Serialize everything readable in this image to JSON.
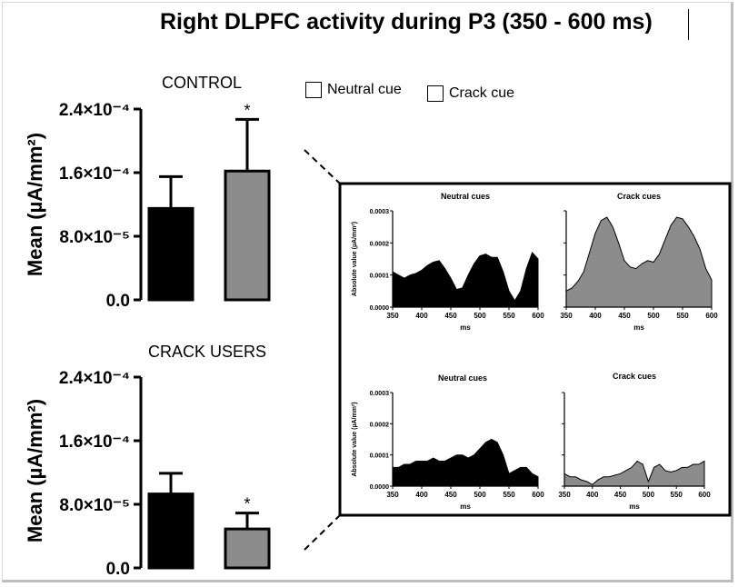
{
  "title": "Right DLPFC activity during P3 (350 - 600 ms)",
  "legend": [
    {
      "label": "Neutral cue",
      "color": "#000000"
    },
    {
      "label": "Crack cue",
      "color": "#8c8c8c"
    }
  ],
  "colors": {
    "neutral": "#000000",
    "crack": "#8c8c8c"
  },
  "chart_data": [
    {
      "type": "bar",
      "title": "CONTROL",
      "ylabel": "Mean  (µA/mm²)",
      "ylim": [
        0,
        0.00024
      ],
      "ytick_labels": [
        "0.0",
        "8.0×10⁻⁵",
        "1.6×10⁻⁴",
        "2.4×10⁻⁴"
      ],
      "series": [
        {
          "name": "Neutral cue",
          "value": 0.000115,
          "error": 4e-05
        },
        {
          "name": "Crack cue",
          "value": 0.000162,
          "error": 6.5e-05,
          "annotation": "*"
        }
      ]
    },
    {
      "type": "bar",
      "title": "CRACK USERS",
      "ylabel": "Mean  (µA/mm²)",
      "ylim": [
        0,
        0.00024
      ],
      "ytick_labels": [
        "0.0",
        "8.0×10⁻⁵",
        "1.6×10⁻⁴",
        "2.4×10⁻⁴"
      ],
      "series": [
        {
          "name": "Neutral cue",
          "value": 9.3e-05,
          "error": 2.6e-05
        },
        {
          "name": "Crack cue",
          "value": 4.9e-05,
          "error": 2e-05,
          "annotation": "*"
        }
      ]
    },
    {
      "type": "area",
      "title": "Neutral cues",
      "xlabel": "ms",
      "ylabel": "Absolute value (µA/mm²)",
      "xlim": [
        350,
        600
      ],
      "ylim": [
        0,
        0.0003
      ],
      "xticks": [
        350,
        400,
        450,
        500,
        550,
        600
      ],
      "ytick_labels": [
        "0.0000",
        "0.0001",
        "0.0002",
        "0.0003"
      ],
      "x": [
        350,
        360,
        370,
        380,
        390,
        400,
        410,
        420,
        430,
        440,
        450,
        460,
        470,
        480,
        490,
        500,
        510,
        520,
        530,
        540,
        550,
        560,
        570,
        580,
        590,
        600
      ],
      "y": [
        0.00011,
        0.0001,
        9e-05,
        0.0001,
        0.000105,
        0.000115,
        0.00013,
        0.00014,
        0.000145,
        0.00012,
        9e-05,
        5.5e-05,
        6e-05,
        0.0001,
        0.000135,
        0.00016,
        0.000165,
        0.000155,
        0.000155,
        0.00011,
        5e-05,
        2e-05,
        5e-05,
        0.00012,
        0.00017,
        0.00015
      ]
    },
    {
      "type": "area",
      "title": "Crack cues",
      "xlabel": "ms",
      "ylabel": "",
      "xlim": [
        350,
        600
      ],
      "ylim": [
        0,
        0.0003
      ],
      "xticks": [
        350,
        400,
        450,
        500,
        550,
        600
      ],
      "x": [
        350,
        360,
        370,
        380,
        390,
        400,
        410,
        420,
        430,
        440,
        450,
        460,
        470,
        480,
        490,
        500,
        510,
        520,
        530,
        540,
        550,
        560,
        570,
        580,
        590,
        600
      ],
      "y": [
        5e-05,
        6e-05,
        8e-05,
        0.00011,
        0.00017,
        0.00023,
        0.00027,
        0.00028,
        0.00025,
        0.0002,
        0.000145,
        0.000125,
        0.00012,
        0.000135,
        0.000145,
        0.00014,
        0.000165,
        0.00021,
        0.000255,
        0.00028,
        0.000275,
        0.00025,
        0.00022,
        0.00018,
        0.00012,
        8.5e-05
      ]
    },
    {
      "type": "area",
      "title": "Neutral cues",
      "xlabel": "ms",
      "ylabel": "Absolute value (µA/mm²)",
      "xlim": [
        350,
        600
      ],
      "ylim": [
        0,
        0.0003
      ],
      "xticks": [
        350,
        400,
        450,
        500,
        550,
        600
      ],
      "ytick_labels": [
        "0.0000",
        "0.0001",
        "0.0002",
        "0.0003"
      ],
      "x": [
        350,
        360,
        370,
        380,
        390,
        400,
        410,
        420,
        430,
        440,
        450,
        460,
        470,
        480,
        490,
        500,
        510,
        520,
        530,
        540,
        550,
        560,
        570,
        580,
        590,
        600
      ],
      "y": [
        6e-05,
        6e-05,
        7e-05,
        7e-05,
        8e-05,
        8e-05,
        8e-05,
        9e-05,
        8e-05,
        8e-05,
        9e-05,
        0.0001,
        0.0001,
        9e-05,
        0.0001,
        0.00012,
        0.00014,
        0.00015,
        0.00014,
        0.0001,
        4e-05,
        5e-05,
        6e-05,
        6e-05,
        4e-05,
        3e-05
      ]
    },
    {
      "type": "area",
      "title": "Crack cues",
      "xlabel": "ms",
      "ylabel": "",
      "xlim": [
        350,
        600
      ],
      "ylim": [
        0,
        0.0003
      ],
      "xticks": [
        350,
        400,
        450,
        500,
        550,
        600
      ],
      "x": [
        350,
        360,
        370,
        380,
        390,
        400,
        410,
        420,
        430,
        440,
        450,
        460,
        470,
        480,
        490,
        500,
        510,
        520,
        530,
        540,
        550,
        560,
        570,
        580,
        590,
        600
      ],
      "y": [
        4e-05,
        3e-05,
        3e-05,
        2e-05,
        1.5e-05,
        5e-06,
        2e-05,
        3e-05,
        3e-05,
        3.5e-05,
        4e-05,
        5e-05,
        6e-05,
        8e-05,
        7e-05,
        1.5e-05,
        6e-05,
        7e-05,
        5e-05,
        4.5e-05,
        5e-05,
        6e-05,
        6e-05,
        7e-05,
        7e-05,
        8e-05
      ]
    }
  ]
}
